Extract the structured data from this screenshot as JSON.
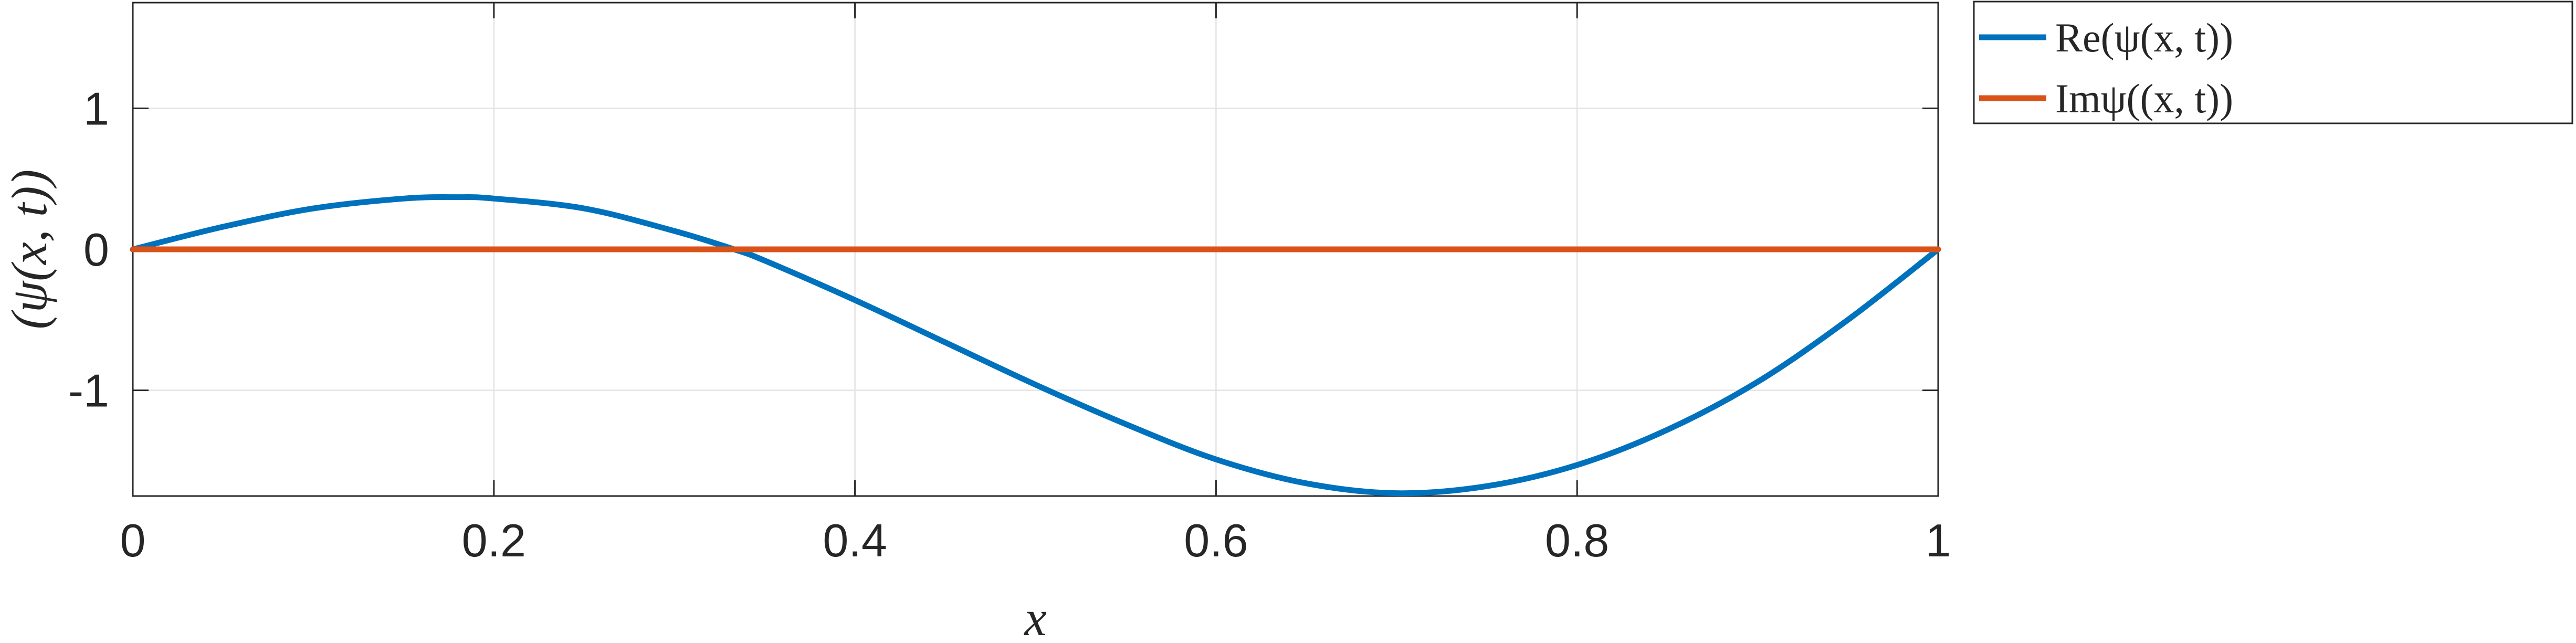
{
  "chart_data": {
    "type": "line",
    "xlabel": "x",
    "ylabel": "(ψ(x, t))",
    "xlim": [
      0,
      1
    ],
    "ylim": [
      -1.75,
      1.75
    ],
    "xticks": [
      0,
      0.2,
      0.4,
      0.6,
      0.8,
      1
    ],
    "xtick_labels": [
      "0",
      "0.2",
      "0.4",
      "0.6",
      "0.8",
      "1"
    ],
    "yticks": [
      1,
      0,
      -1
    ],
    "ytick_labels": [
      "1",
      "0",
      "-1"
    ],
    "grid": true,
    "legend_position": "outside-top-right",
    "series": [
      {
        "name": "Re(ψ(x, t))",
        "color": "#0072BD",
        "x": [
          0,
          0.05,
          0.1,
          0.15,
          0.18,
          0.2,
          0.25,
          0.3,
          0.333,
          0.35,
          0.4,
          0.45,
          0.5,
          0.55,
          0.6,
          0.65,
          0.7,
          0.75,
          0.8,
          0.85,
          0.9,
          0.95,
          1
        ],
        "y": [
          0,
          0.16,
          0.29,
          0.36,
          0.37,
          0.36,
          0.29,
          0.13,
          0,
          -0.08,
          -0.36,
          -0.66,
          -0.96,
          -1.24,
          -1.49,
          -1.66,
          -1.73,
          -1.68,
          -1.53,
          -1.28,
          -0.94,
          -0.5,
          0
        ]
      },
      {
        "name": "Imψ((x, t))",
        "color": "#D95319",
        "x": [
          0,
          1
        ],
        "y": [
          0,
          0
        ]
      }
    ]
  }
}
